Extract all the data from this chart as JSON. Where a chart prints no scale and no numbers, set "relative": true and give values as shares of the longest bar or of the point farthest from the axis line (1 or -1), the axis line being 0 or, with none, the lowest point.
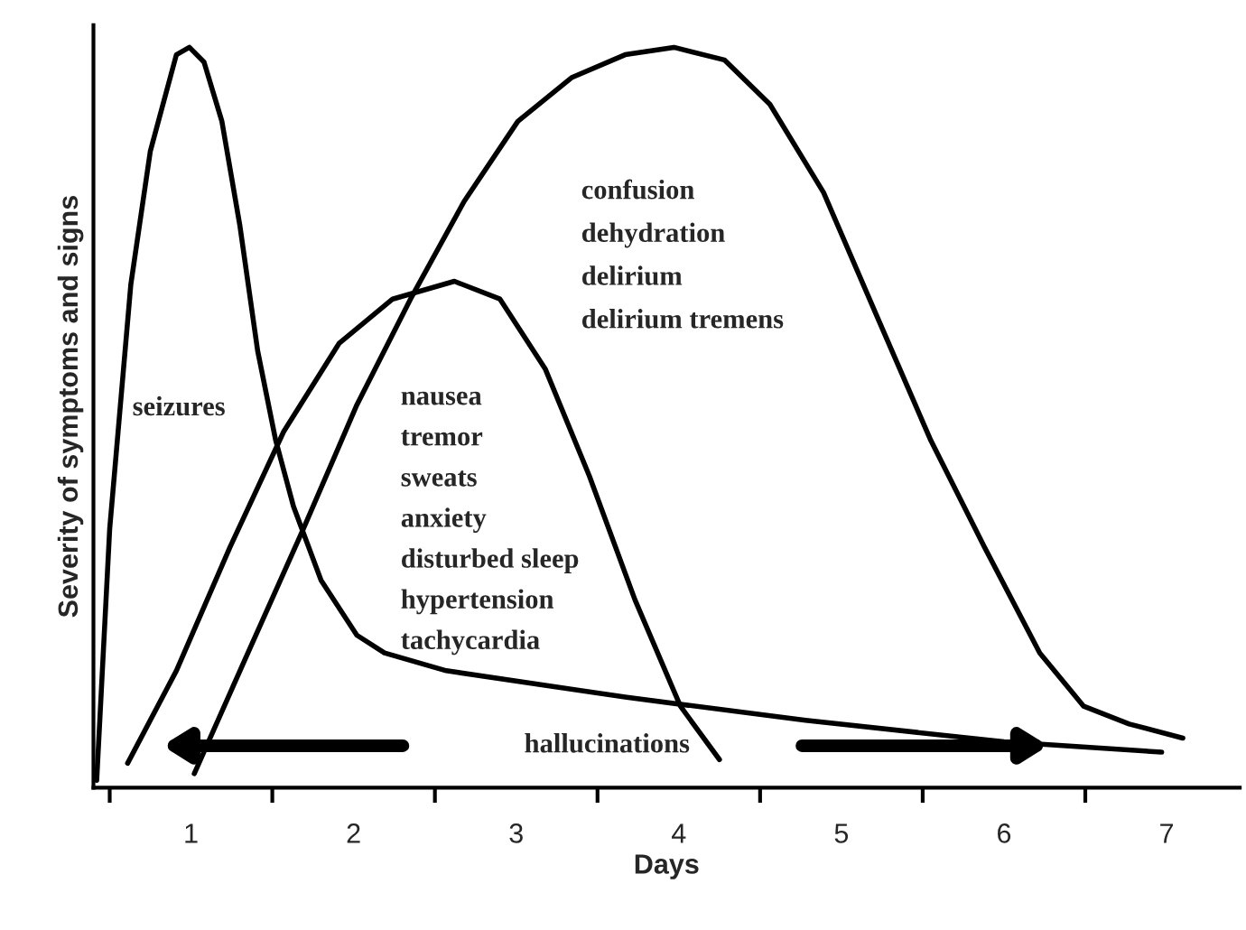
{
  "chart_data": {
    "type": "line",
    "relative": true,
    "xlabel": "Days",
    "ylabel": "Severity of symptoms and signs",
    "xlim": [
      0.4,
      7.45
    ],
    "xticks": [
      {
        "value": 0.5,
        "label": null
      },
      1,
      {
        "value": 1.5,
        "label": null
      },
      2,
      {
        "value": 2.5,
        "label": null
      },
      3,
      {
        "value": 3.5,
        "label": null
      },
      4,
      {
        "value": 4.5,
        "label": null
      },
      5,
      {
        "value": 5.5,
        "label": null
      },
      6,
      {
        "value": 6.5,
        "label": null
      },
      7
    ],
    "tick_labels": "x",
    "grid": false,
    "legend": false,
    "marker": "none",
    "line_style": "solid",
    "series": [
      {
        "color": "#000000",
        "x": [
          0.42,
          0.5,
          0.63,
          0.75,
          0.91,
          0.99,
          1.08,
          1.19,
          1.3,
          1.41,
          1.52,
          1.63,
          1.8,
          2.02,
          2.19,
          2.57,
          3.68,
          4.78,
          6.0,
          6.97
        ],
        "values": [
          0.01,
          0.35,
          0.68,
          0.86,
          0.99,
          1.0,
          0.98,
          0.9,
          0.76,
          0.59,
          0.47,
          0.38,
          0.28,
          0.206,
          0.182,
          0.158,
          0.122,
          0.091,
          0.062,
          0.048
        ]
      },
      {
        "color": "#000000",
        "x": [
          0.61,
          0.91,
          1.24,
          1.57,
          1.91,
          2.24,
          2.62,
          2.9,
          3.18,
          3.45,
          3.73,
          4.01,
          4.25
        ],
        "values": [
          0.033,
          0.158,
          0.325,
          0.481,
          0.6,
          0.66,
          0.684,
          0.66,
          0.565,
          0.421,
          0.254,
          0.11,
          0.038
        ]
      },
      {
        "color": "#000000",
        "x": [
          1.02,
          1.35,
          1.69,
          2.02,
          2.35,
          2.68,
          3.01,
          3.34,
          3.67,
          3.97,
          4.28,
          4.56,
          4.89,
          5.22,
          5.55,
          5.88,
          6.22,
          6.49,
          6.77,
          7.1
        ],
        "values": [
          0.019,
          0.182,
          0.349,
          0.517,
          0.66,
          0.792,
          0.9,
          0.959,
          0.99,
          1.0,
          0.983,
          0.923,
          0.804,
          0.636,
          0.469,
          0.325,
          0.182,
          0.11,
          0.086,
          0.067
        ]
      }
    ],
    "annotations": [
      "seizures",
      "nausea",
      "tremor",
      "sweats",
      "anxiety",
      "disturbed sleep",
      "hypertension",
      "tachycardia",
      "confusion",
      "dehydration",
      "delirium",
      "delirium tremens",
      "hallucinations"
    ]
  }
}
